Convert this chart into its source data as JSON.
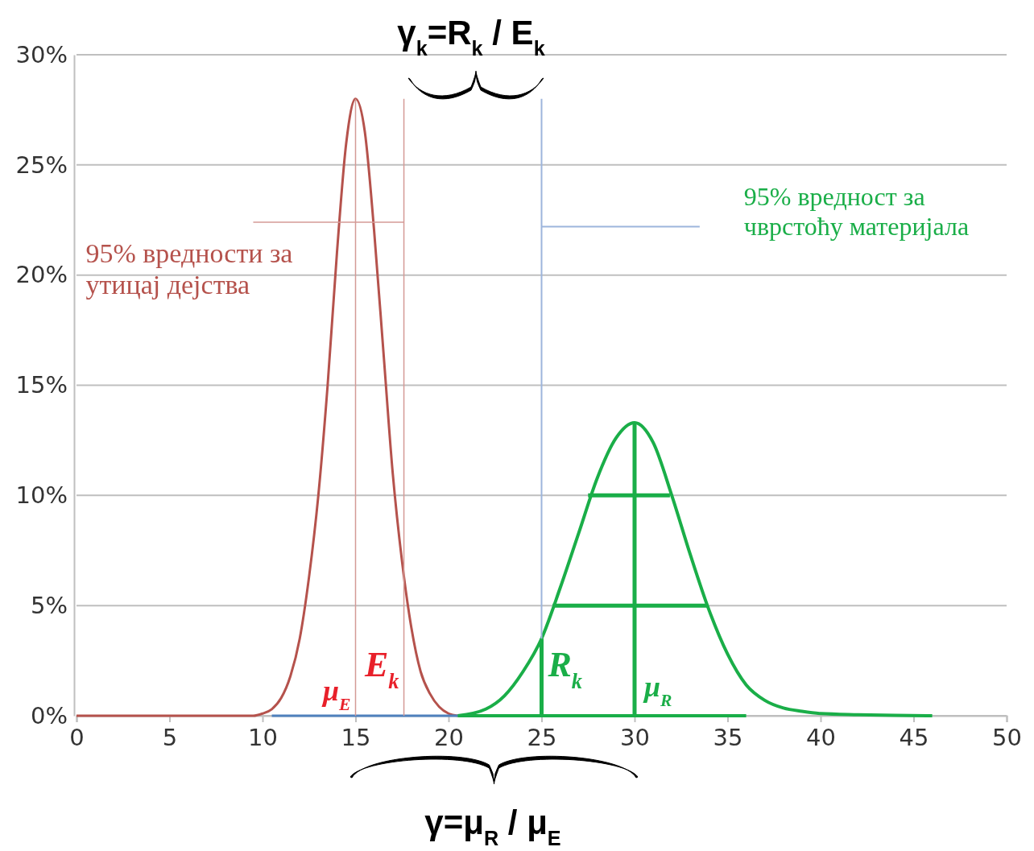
{
  "chart_data": {
    "type": "line",
    "xlim": [
      0,
      50
    ],
    "xticks": [
      0,
      5,
      10,
      15,
      20,
      25,
      30,
      35,
      40,
      45,
      50
    ],
    "ylim": [
      0,
      30
    ],
    "yticks": [
      {
        "value": 0,
        "label": "0%"
      },
      {
        "value": 5,
        "label": "5%"
      },
      {
        "value": 10,
        "label": "10%"
      },
      {
        "value": 15,
        "label": "15%"
      },
      {
        "value": 20,
        "label": "20%"
      },
      {
        "value": 25,
        "label": "25%"
      },
      {
        "value": 30,
        "label": "30%"
      }
    ],
    "grid": "y",
    "marker": "none",
    "line_style": "solid",
    "series": [
      {
        "color": "#b5524c",
        "x": [
          0,
          9.5,
          10,
          10.5,
          11,
          11.5,
          12,
          12.5,
          13,
          13.5,
          14,
          14.5,
          15,
          15.5,
          16,
          16.5,
          17,
          17.5,
          18,
          18.5,
          19,
          19.5,
          20,
          20.5
        ],
        "values": [
          0,
          0,
          0.1,
          0.3,
          0.8,
          1.8,
          3.5,
          6.3,
          10,
          15,
          21,
          26,
          28,
          26.5,
          22,
          16.5,
          11,
          7,
          4,
          2,
          1,
          0.4,
          0.1,
          0
        ]
      },
      {
        "color": "#1aae48",
        "x": [
          20.5,
          22,
          23,
          24,
          25,
          26,
          27,
          28,
          29,
          30,
          31,
          32,
          33,
          34,
          35,
          36,
          37,
          38,
          39,
          40,
          42,
          44,
          46
        ],
        "values": [
          0,
          0.3,
          0.9,
          2,
          3.5,
          5.8,
          8.3,
          10.8,
          12.6,
          13.3,
          12.4,
          10,
          7.3,
          4.8,
          2.8,
          1.4,
          0.7,
          0.35,
          0.2,
          0.1,
          0.05,
          0.02,
          0
        ]
      },
      {
        "color": "#4f81bd",
        "x": [
          10.5,
          20.5
        ],
        "values": [
          0,
          0
        ]
      },
      {
        "color": "#1aae48",
        "x": [
          20.5,
          36
        ],
        "values": [
          0,
          0
        ]
      },
      {
        "color": "#d49a96",
        "x": [
          15,
          15
        ],
        "values": [
          0,
          28
        ]
      },
      {
        "color": "#d49a96",
        "x": [
          17.6,
          17.6
        ],
        "values": [
          0,
          28
        ]
      },
      {
        "color": "#9db5dc",
        "x": [
          25,
          25
        ],
        "values": [
          0,
          28
        ]
      },
      {
        "color": "#d49a96",
        "x": [
          9.5,
          17.6
        ],
        "values": [
          22.4,
          22.4
        ]
      },
      {
        "color": "#9db5dc",
        "x": [
          25,
          33.5
        ],
        "values": [
          22.2,
          22.2
        ]
      },
      {
        "color": "#1aae48",
        "x": [
          30,
          30
        ],
        "values": [
          0,
          13.3
        ]
      },
      {
        "color": "#1aae48",
        "x": [
          25,
          25
        ],
        "values": [
          0,
          3.5
        ]
      },
      {
        "color": "#1aae48",
        "x": [
          27.5,
          31.9
        ],
        "values": [
          10,
          10
        ]
      },
      {
        "color": "#1aae48",
        "x": [
          25.6,
          33.9
        ],
        "values": [
          5,
          5
        ]
      }
    ],
    "annotations": [
      {
        "text": "95% вредности за утицај дејства",
        "x": 9.5,
        "y": 22.4
      },
      {
        "text": "95% вредност за чврстоћу материјала",
        "x": 33.5,
        "y": 22.2
      },
      {
        "text": "μ$_{E}$",
        "x": 15,
        "y": 0
      },
      {
        "text": "E$_{k}$",
        "x": 17.6,
        "y": 0
      },
      {
        "text": "R$_{k}$",
        "x": 25,
        "y": 0
      },
      {
        "text": "μ$_{R}$",
        "x": 30,
        "y": 0
      },
      "γ$_{k}$=R$_{k}$ / E$_{k}$",
      "γ=μ$_{R}$ / μ$_{E}$"
    ]
  }
}
